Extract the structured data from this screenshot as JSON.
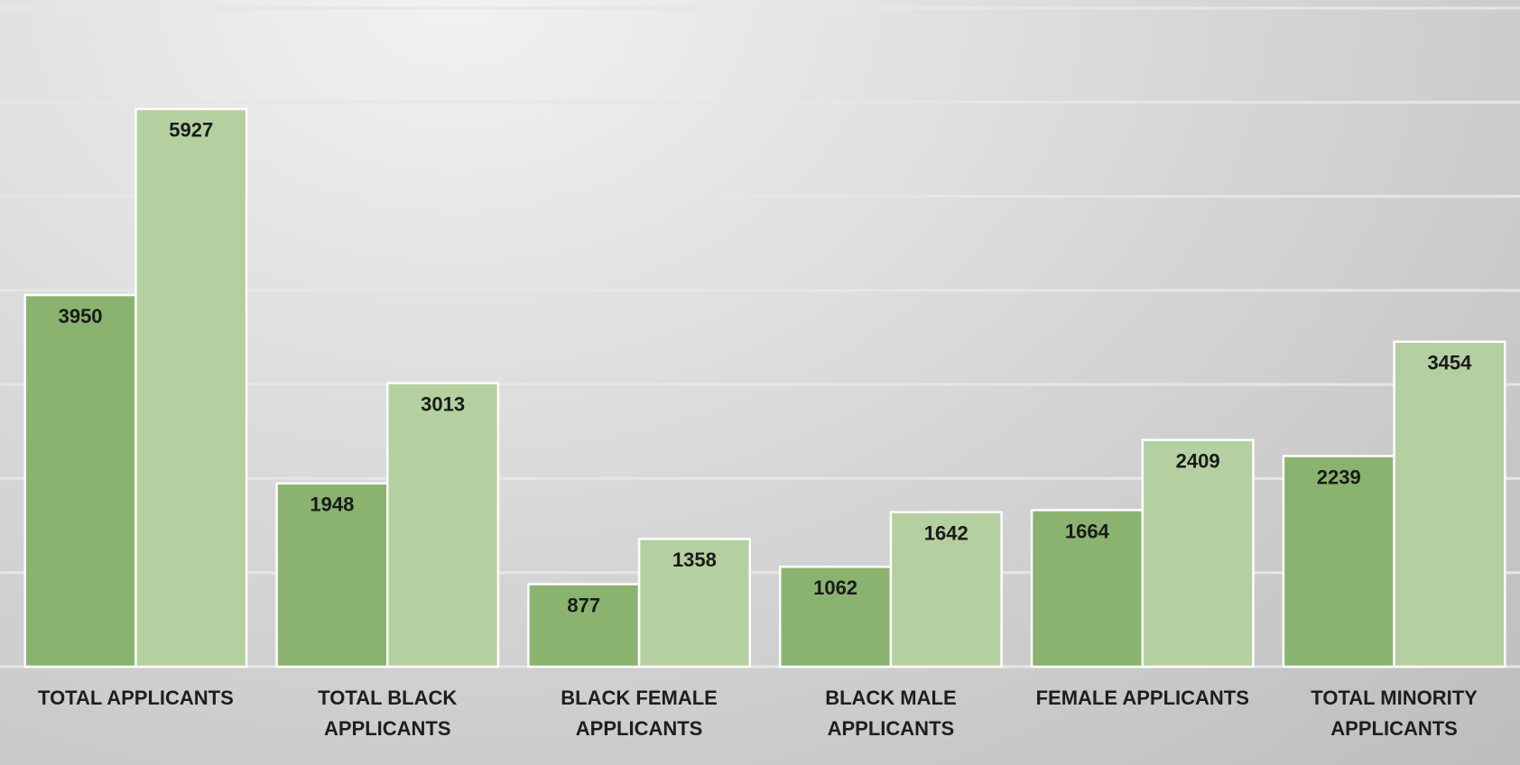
{
  "chart_data": {
    "type": "bar",
    "categories": [
      "TOTAL APPLICANTS",
      "TOTAL BLACK APPLICANTS",
      "BLACK FEMALE APPLICANTS",
      "BLACK MALE APPLICANTS",
      "FEMALE APPLICANTS",
      "TOTAL MINORITY APPLICANTS"
    ],
    "series": [
      {
        "color": "#8ab370",
        "values": [
          3950,
          1948,
          877,
          1062,
          1664,
          2239
        ]
      },
      {
        "color": "#b5d0a0",
        "values": [
          5927,
          3013,
          1358,
          1642,
          2409,
          3454
        ]
      }
    ],
    "ylim": [
      0,
      7000
    ],
    "yticks": [
      0,
      1000,
      2000,
      3000,
      4000,
      5000,
      6000,
      7000
    ],
    "grid": true
  }
}
